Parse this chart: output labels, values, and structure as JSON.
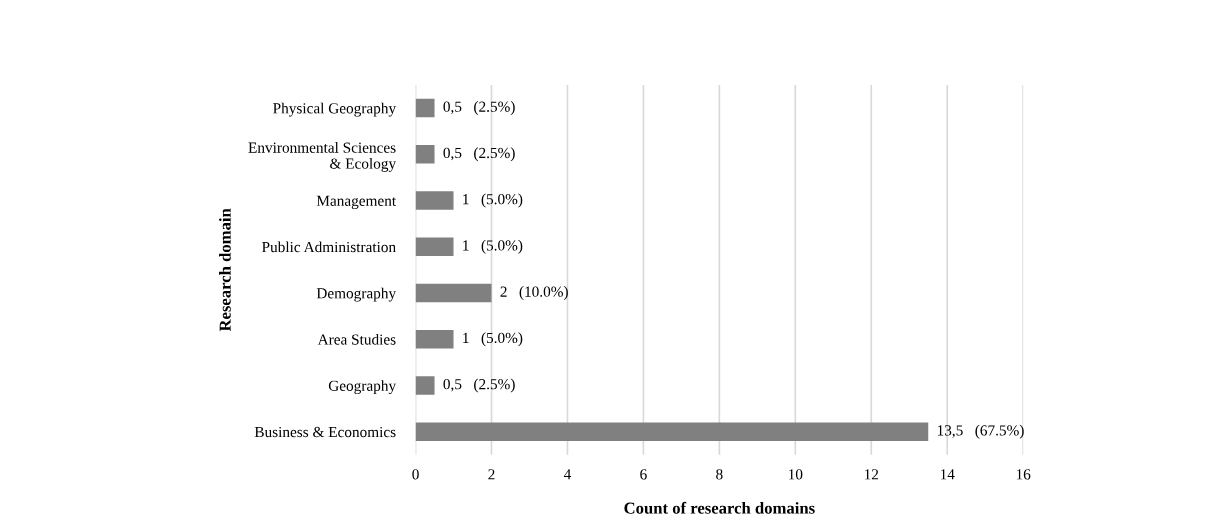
{
  "chart_data": {
    "type": "bar",
    "orientation": "horizontal",
    "xlabel": "Count of research domains",
    "ylabel": "Research domain",
    "categories": [
      "Physical Geography",
      "Environmental Sciences\n& Ecology",
      "Management",
      "Public Administration",
      "Demography",
      "Area Studies",
      "Geography",
      "Business & Economics"
    ],
    "values": [
      0.5,
      0.5,
      1,
      1,
      2,
      1,
      0.5,
      13.5
    ],
    "value_labels": [
      "0,5   (2.5%)",
      "0,5   (2.5%)",
      "1   (5.0%)",
      "1   (5.0%)",
      "2   (10.0%)",
      "1   (5.0%)",
      "0,5   (2.5%)",
      "13,5   (67.5%)"
    ],
    "color": "#808080",
    "xlim": [
      0,
      16
    ],
    "xticks": [
      0,
      2,
      4,
      6,
      8,
      10,
      12,
      14,
      16
    ],
    "grid": "x"
  }
}
